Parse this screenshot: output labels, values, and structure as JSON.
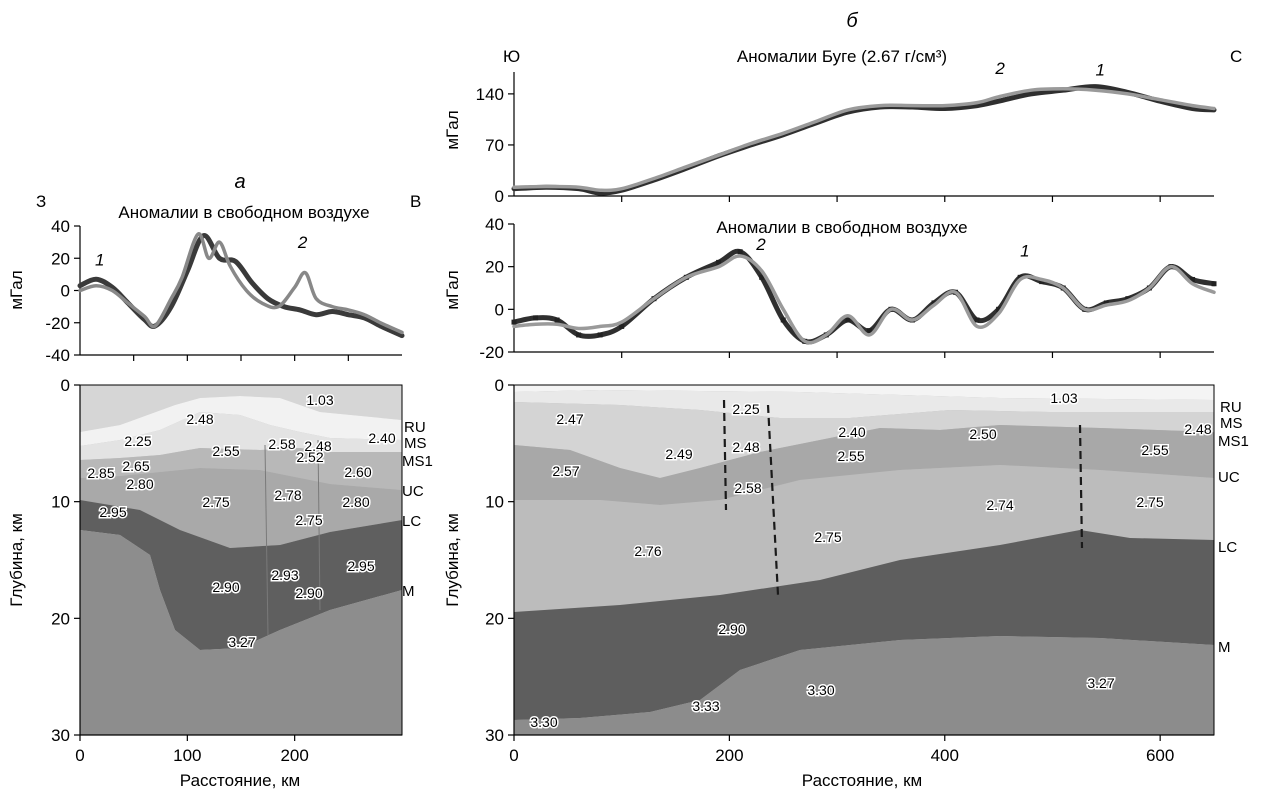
{
  "panel_a": {
    "label": "а",
    "dir_left": "З",
    "dir_right": "В",
    "ylabel_top": "мГал",
    "ylabel_bottom": "Глубина, км",
    "xlabel": "Расстояние, км",
    "layer_labels": [
      "RU",
      "MS",
      "MS1",
      "UC",
      "LC",
      "M"
    ],
    "densities": [
      "1.03",
      "2.48",
      "2.25",
      "2.55",
      "2.58",
      "2.48",
      "2.40",
      "2.52",
      "2.65",
      "2.85",
      "2.80",
      "2.60",
      "2.75",
      "2.78",
      "2.80",
      "2.95",
      "2.75",
      "2.93",
      "2.95",
      "2.90",
      "2.90",
      "3.27"
    ]
  },
  "panel_b": {
    "label": "б",
    "dir_left": "Ю",
    "dir_right": "С",
    "ylabel_top": "мГал",
    "ylabel_mid": "мГал",
    "ylabel_bottom": "Глубина, км",
    "xlabel": "Расстояние, км",
    "layer_labels": [
      "RU",
      "MS",
      "MS1",
      "UC",
      "LC",
      "M"
    ],
    "densities": [
      "1.03",
      "2.47",
      "2.25",
      "2.48",
      "2.40",
      "2.50",
      "2.48",
      "2.49",
      "2.55",
      "2.55",
      "2.57",
      "2.58",
      "2.74",
      "2.75",
      "2.76",
      "2.75",
      "2.90",
      "3.30",
      "3.33",
      "3.27",
      "3.30"
    ]
  },
  "chart_data": [
    {
      "id": "a-free-air",
      "type": "line",
      "title": "Аномалии в свободном воздухе",
      "xlabel": "",
      "ylabel": "мГал",
      "xlim": [
        0,
        300
      ],
      "ylim": [
        -40,
        40
      ],
      "yticks": [
        -40,
        -20,
        0,
        20,
        40
      ],
      "series_labels": [
        "1",
        "2"
      ],
      "series": [
        {
          "name": "1",
          "color": "#3a3a3a",
          "x": [
            0,
            15,
            30,
            45,
            60,
            70,
            85,
            100,
            115,
            130,
            145,
            160,
            175,
            190,
            205,
            220,
            235,
            250,
            265,
            280,
            300
          ],
          "y": [
            3,
            7,
            2,
            -8,
            -18,
            -22,
            -10,
            12,
            34,
            20,
            18,
            5,
            -5,
            -10,
            -12,
            -15,
            -13,
            -15,
            -17,
            -22,
            -28
          ]
        },
        {
          "name": "2",
          "color": "#888888",
          "x": [
            0,
            15,
            30,
            45,
            60,
            70,
            85,
            95,
            110,
            120,
            130,
            140,
            155,
            170,
            185,
            200,
            210,
            220,
            235,
            250,
            265,
            280,
            300
          ],
          "y": [
            0,
            3,
            0,
            -8,
            -16,
            -22,
            -5,
            8,
            35,
            20,
            30,
            15,
            0,
            -8,
            -10,
            2,
            11,
            -5,
            -10,
            -12,
            -15,
            -20,
            -26
          ]
        }
      ]
    },
    {
      "id": "b-bouguer",
      "type": "line",
      "title": "Аномалии Буге (2.67 г/см³)",
      "xlabel": "",
      "ylabel": "мГал",
      "xlim": [
        0,
        650
      ],
      "ylim": [
        0,
        170
      ],
      "yticks": [
        0,
        70,
        140
      ],
      "series_labels": [
        "1",
        "2"
      ],
      "series": [
        {
          "name": "1",
          "color": "#2f2f2f",
          "x": [
            0,
            30,
            60,
            80,
            100,
            130,
            160,
            190,
            220,
            250,
            280,
            310,
            340,
            370,
            400,
            430,
            450,
            480,
            510,
            540,
            570,
            600,
            630,
            650
          ],
          "y": [
            10,
            12,
            10,
            4,
            8,
            22,
            38,
            55,
            70,
            84,
            100,
            115,
            122,
            122,
            120,
            124,
            130,
            140,
            145,
            150,
            142,
            130,
            120,
            118
          ]
        },
        {
          "name": "2",
          "color": "#9a9a9a",
          "x": [
            0,
            30,
            60,
            80,
            100,
            130,
            160,
            190,
            220,
            250,
            280,
            310,
            340,
            370,
            400,
            430,
            450,
            480,
            510,
            540,
            570,
            600,
            630,
            650
          ],
          "y": [
            12,
            13,
            12,
            8,
            10,
            24,
            40,
            56,
            72,
            86,
            102,
            118,
            124,
            124,
            124,
            128,
            136,
            145,
            147,
            145,
            140,
            132,
            124,
            120
          ]
        }
      ]
    },
    {
      "id": "b-free-air",
      "type": "line",
      "title": "Аномалии в свободном воздухе",
      "xlabel": "",
      "ylabel": "мГал",
      "xlim": [
        0,
        650
      ],
      "ylim": [
        -20,
        40
      ],
      "yticks": [
        -20,
        0,
        20,
        40
      ],
      "series_labels": [
        "1",
        "2"
      ],
      "series": [
        {
          "name": "1",
          "color": "#2f2f2f",
          "x": [
            0,
            20,
            40,
            60,
            80,
            100,
            130,
            160,
            190,
            210,
            230,
            250,
            270,
            290,
            310,
            330,
            350,
            370,
            390,
            410,
            430,
            450,
            470,
            490,
            510,
            530,
            550,
            570,
            590,
            610,
            630,
            650
          ],
          "y": [
            -6,
            -4,
            -5,
            -12,
            -12,
            -8,
            5,
            15,
            22,
            27,
            15,
            -5,
            -15,
            -12,
            -5,
            -10,
            0,
            -5,
            3,
            8,
            -5,
            0,
            15,
            13,
            10,
            0,
            3,
            5,
            10,
            20,
            14,
            12
          ]
        },
        {
          "name": "2",
          "color": "#9a9a9a",
          "x": [
            0,
            20,
            40,
            60,
            80,
            100,
            130,
            160,
            190,
            210,
            230,
            250,
            270,
            290,
            310,
            330,
            350,
            370,
            390,
            410,
            430,
            450,
            470,
            490,
            510,
            530,
            550,
            570,
            590,
            610,
            630,
            650
          ],
          "y": [
            -8,
            -7,
            -7,
            -9,
            -8,
            -6,
            5,
            15,
            20,
            25,
            18,
            0,
            -15,
            -12,
            -3,
            -12,
            0,
            -5,
            2,
            8,
            -8,
            -2,
            14,
            14,
            10,
            0,
            2,
            4,
            10,
            20,
            12,
            8
          ]
        }
      ]
    },
    {
      "id": "a-section",
      "type": "area",
      "xlabel": "Расстояние, км",
      "ylabel": "Глубина, км",
      "xlim": [
        0,
        300
      ],
      "ylim": [
        30,
        0
      ],
      "xticks": [
        0,
        100,
        200
      ],
      "yticks": [
        0,
        10,
        20,
        30
      ]
    },
    {
      "id": "b-section",
      "type": "area",
      "xlabel": "Расстояние, км",
      "ylabel": "Глубина, км",
      "xlim": [
        0,
        650
      ],
      "ylim": [
        30,
        0
      ],
      "xticks": [
        0,
        200,
        400,
        600
      ],
      "yticks": [
        0,
        10,
        20,
        30
      ]
    }
  ]
}
